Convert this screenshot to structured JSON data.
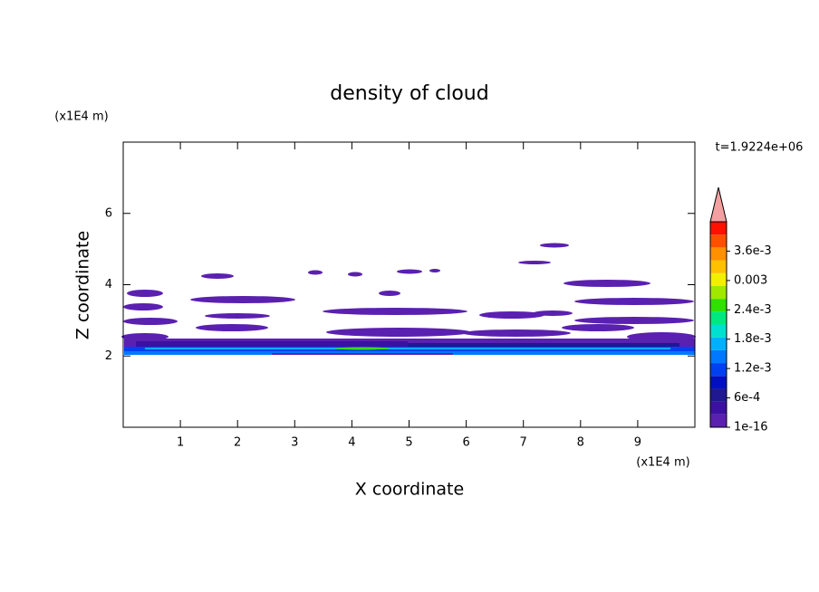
{
  "chart_data": {
    "type": "contour",
    "title": "density of cloud",
    "x_label": "X coordinate",
    "y_label": "Z coordinate",
    "x_unit": "(x1E4 m)",
    "y_unit": "(x1E4 m)",
    "time_label": "t=1.9224e+06",
    "xlim": [
      0,
      10
    ],
    "xticks": [
      1,
      2,
      3,
      4,
      5,
      6,
      7,
      8,
      9
    ],
    "ylim": [
      0,
      8
    ],
    "yticks": [
      2,
      4,
      6
    ],
    "colorbar": {
      "colors": [
        "#5a20b0",
        "#3c10a0",
        "#201890",
        "#0010c0",
        "#0040f0",
        "#0078ff",
        "#00b0ff",
        "#00e0d0",
        "#00e880",
        "#30e000",
        "#a0e800",
        "#f0f000",
        "#ffc000",
        "#ff9000",
        "#ff5000",
        "#ff1000"
      ],
      "extend_color": "#f4a0a0",
      "ticks": [
        1e-16,
        {
          "value": 0.0006,
          "label": "6e-4"
        },
        {
          "value": 0.0012,
          "label": "1.2e-3"
        },
        {
          "value": 0.0018,
          "label": "1.8e-3"
        },
        {
          "value": 0.0024,
          "label": "2.4e-3"
        },
        0.003,
        {
          "value": 0.0036,
          "label": "3.6e-3"
        }
      ],
      "lim": [
        1e-16,
        0.0042
      ]
    }
  }
}
